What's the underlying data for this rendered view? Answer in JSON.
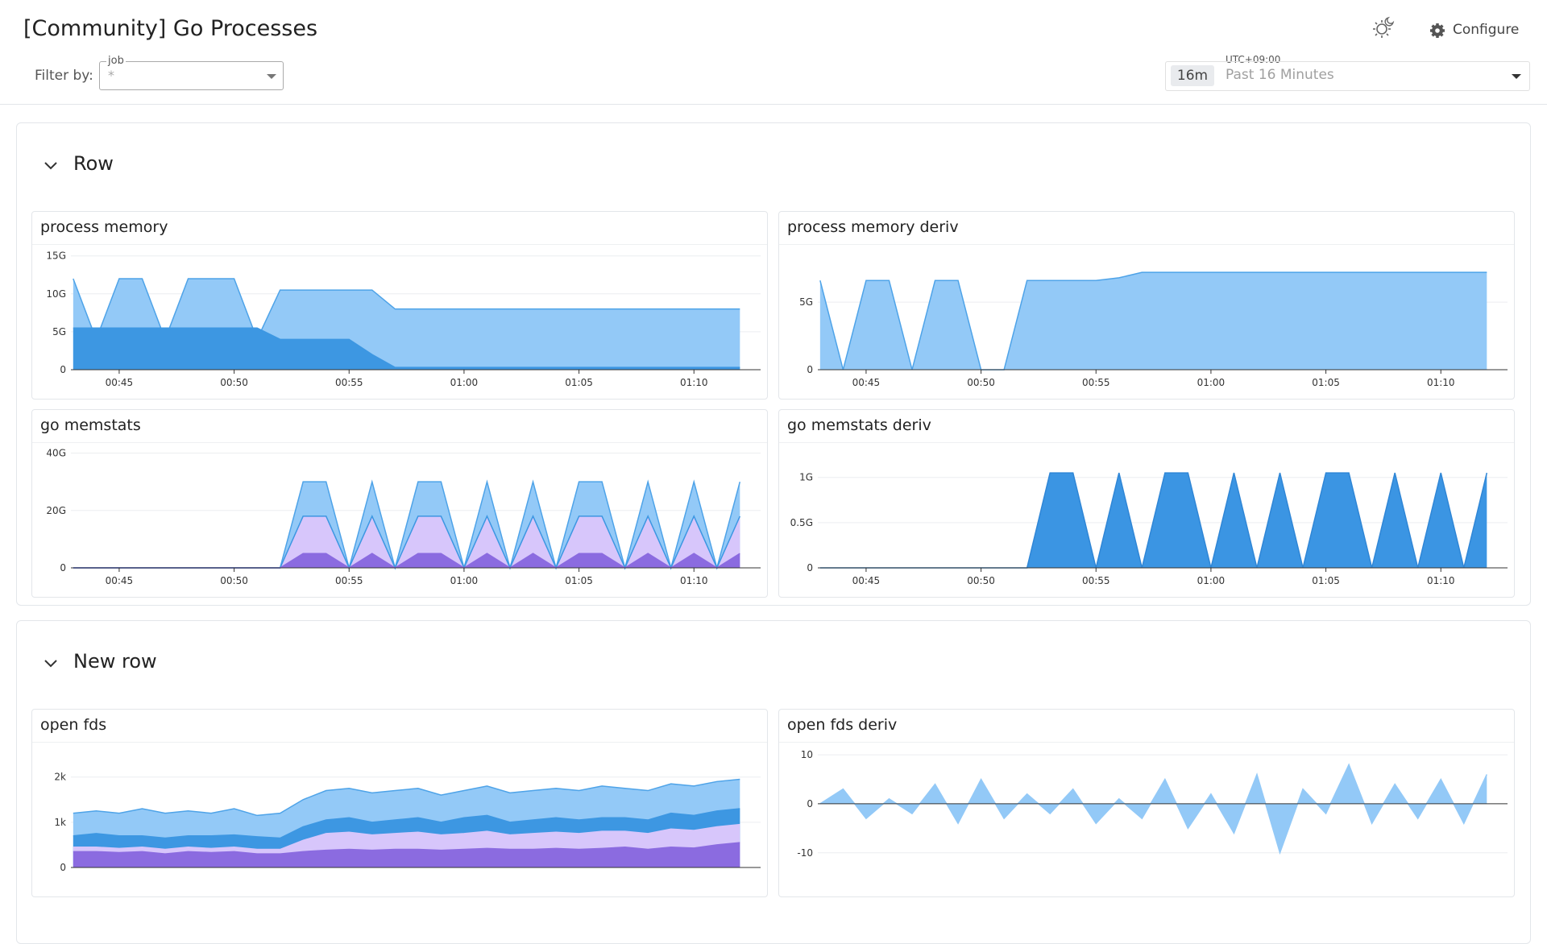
{
  "header": {
    "title": "[Community] Go Processes",
    "filter_label": "Filter by:",
    "filter": {
      "label": "job",
      "value": "*"
    },
    "timezone": "UTC+09:00",
    "range_short": "16m",
    "range": "Past 16 Minutes",
    "configure": "Configure"
  },
  "rows": [
    {
      "title": "Row",
      "panels": [
        {
          "type": "area",
          "title": "process memory",
          "x": [
            43,
            44,
            45,
            46,
            47,
            48,
            49,
            50,
            51,
            52,
            53,
            54,
            55,
            56,
            57,
            58,
            59,
            60,
            61,
            62,
            63,
            64,
            65,
            66,
            67,
            68,
            69,
            70,
            71,
            72
          ],
          "xlim": [
            42.9,
            72.9
          ],
          "xticks": [
            {
              "value": 45,
              "label": "00:45"
            },
            {
              "value": 50,
              "label": "00:50"
            },
            {
              "value": 55,
              "label": "00:55"
            },
            {
              "value": 60,
              "label": "01:00"
            },
            {
              "value": 65,
              "label": "01:05"
            },
            {
              "value": 70,
              "label": "01:10"
            }
          ],
          "ylim": [
            0,
            15.5
          ],
          "yticks": [
            0,
            {
              "value": 5,
              "label": "5G"
            },
            {
              "value": 10,
              "label": "10G"
            },
            {
              "value": 15,
              "label": "15G"
            }
          ],
          "series": [
            {
              "color": "#93c9f7",
              "line_color": "#4ea3e8",
              "values": [
                12,
                4,
                12,
                12,
                4,
                12,
                12,
                12,
                4,
                10.5,
                10.5,
                10.5,
                10.5,
                10.5,
                8,
                8,
                8,
                8,
                8,
                8,
                8,
                8,
                8,
                8,
                8,
                8,
                8,
                8,
                8,
                8
              ]
            },
            {
              "color": "#3d97e2",
              "line_color": "#3d97e2",
              "values": [
                5.5,
                5.5,
                5.5,
                5.5,
                5.5,
                5.5,
                5.5,
                5.5,
                5.5,
                4,
                4,
                4,
                4,
                2,
                0.3,
                0.3,
                0.3,
                0.3,
                0.3,
                0.3,
                0.3,
                0.3,
                0.3,
                0.3,
                0.3,
                0.3,
                0.3,
                0.3,
                0.3,
                0.3
              ]
            }
          ]
        },
        {
          "type": "area",
          "title": "process memory deriv",
          "x": [
            43,
            44,
            45,
            46,
            47,
            48,
            49,
            50,
            51,
            52,
            53,
            54,
            55,
            56,
            57,
            58,
            59,
            60,
            61,
            62,
            63,
            64,
            65,
            66,
            67,
            68,
            69,
            70,
            71,
            72
          ],
          "xlim": [
            42.9,
            72.9
          ],
          "xticks": [
            {
              "value": 45,
              "label": "00:45"
            },
            {
              "value": 50,
              "label": "00:50"
            },
            {
              "value": 55,
              "label": "00:55"
            },
            {
              "value": 60,
              "label": "01:00"
            },
            {
              "value": 65,
              "label": "01:05"
            },
            {
              "value": 70,
              "label": "01:10"
            }
          ],
          "ylim": [
            0,
            8.7
          ],
          "yticks": [
            0,
            {
              "value": 5,
              "label": "5G"
            }
          ],
          "series": [
            {
              "color": "#93c9f7",
              "line_color": "#4ea3e8",
              "values": [
                6.6,
                0,
                6.6,
                6.6,
                0,
                6.6,
                6.6,
                0,
                0,
                6.6,
                6.6,
                6.6,
                6.6,
                6.8,
                7.2,
                7.2,
                7.2,
                7.2,
                7.2,
                7.2,
                7.2,
                7.2,
                7.2,
                7.2,
                7.2,
                7.2,
                7.2,
                7.2,
                7.2,
                7.2
              ]
            }
          ]
        },
        {
          "type": "area",
          "title": "go memstats",
          "x": [
            43,
            44,
            45,
            46,
            47,
            48,
            49,
            50,
            51,
            52,
            53,
            54,
            55,
            56,
            57,
            58,
            59,
            60,
            61,
            62,
            63,
            64,
            65,
            66,
            67,
            68,
            69,
            70,
            71,
            72
          ],
          "xlim": [
            42.9,
            72.9
          ],
          "xticks": [
            {
              "value": 45,
              "label": "00:45"
            },
            {
              "value": 50,
              "label": "00:50"
            },
            {
              "value": 55,
              "label": "00:55"
            },
            {
              "value": 60,
              "label": "01:00"
            },
            {
              "value": 65,
              "label": "01:05"
            },
            {
              "value": 70,
              "label": "01:10"
            }
          ],
          "ylim": [
            0,
            41
          ],
          "yticks": [
            0,
            {
              "value": 20,
              "label": "20G"
            },
            {
              "value": 40,
              "label": "40G"
            }
          ],
          "series": [
            {
              "color": "#93c9f7",
              "line_color": "#4ea3e8",
              "values": [
                0,
                0,
                0,
                0,
                0,
                0,
                0,
                0,
                0,
                0,
                30,
                30,
                0,
                30,
                0,
                30,
                30,
                0,
                30,
                0,
                30,
                0,
                30,
                30,
                0,
                30,
                0,
                30,
                0,
                30
              ]
            },
            {
              "color": "#d7c6fb",
              "line_color": "#3d97e2",
              "values": [
                0,
                0,
                0,
                0,
                0,
                0,
                0,
                0,
                0,
                0,
                18,
                18,
                0,
                18,
                0,
                18,
                18,
                0,
                18,
                0,
                18,
                0,
                18,
                18,
                0,
                18,
                0,
                18,
                0,
                18
              ]
            },
            {
              "color": "#8b6be0",
              "line_color": "#8b6be0",
              "values": [
                0,
                0,
                0,
                0,
                0,
                0,
                0,
                0,
                0,
                0,
                5,
                5,
                0,
                5,
                0,
                5,
                5,
                0,
                5,
                0,
                5,
                0,
                5,
                5,
                0,
                5,
                0,
                5,
                0,
                5
              ]
            }
          ]
        },
        {
          "type": "area",
          "title": "go memstats deriv",
          "x": [
            43,
            44,
            45,
            46,
            47,
            48,
            49,
            50,
            51,
            52,
            53,
            54,
            55,
            56,
            57,
            58,
            59,
            60,
            61,
            62,
            63,
            64,
            65,
            66,
            67,
            68,
            69,
            70,
            71,
            72
          ],
          "xlim": [
            42.9,
            72.9
          ],
          "xticks": [
            {
              "value": 45,
              "label": "00:45"
            },
            {
              "value": 50,
              "label": "00:50"
            },
            {
              "value": 55,
              "label": "00:55"
            },
            {
              "value": 60,
              "label": "01:00"
            },
            {
              "value": 65,
              "label": "01:05"
            },
            {
              "value": 70,
              "label": "01:10"
            }
          ],
          "ylim": [
            0,
            1.3
          ],
          "yticks": [
            0,
            {
              "value": 0.5,
              "label": "0.5G"
            },
            {
              "value": 1,
              "label": "1G"
            }
          ],
          "series": [
            {
              "color": "#3b95e3",
              "line_color": "#2f86d6",
              "values": [
                0,
                0,
                0,
                0,
                0,
                0,
                0,
                0,
                0,
                0,
                1.05,
                1.05,
                0,
                1.05,
                0,
                1.05,
                1.05,
                0,
                1.05,
                0,
                1.05,
                0,
                1.05,
                1.05,
                0,
                1.05,
                0,
                1.05,
                0,
                1.05
              ]
            }
          ]
        }
      ]
    },
    {
      "title": "New row",
      "panels": [
        {
          "type": "area",
          "title": "open fds",
          "x": [
            43,
            44,
            45,
            46,
            47,
            48,
            49,
            50,
            51,
            52,
            53,
            54,
            55,
            56,
            57,
            58,
            59,
            60,
            61,
            62,
            63,
            64,
            65,
            66,
            67,
            68,
            69,
            70,
            71,
            72
          ],
          "xlim": [
            42.9,
            72.9
          ],
          "xticks": [],
          "ylim": [
            0,
            2.6
          ],
          "yticks": [
            0,
            {
              "value": 1,
              "label": "1k"
            },
            {
              "value": 2,
              "label": "2k"
            }
          ],
          "series": [
            {
              "color": "#93c9f7",
              "line_color": "#4ea3e8",
              "values": [
                1.2,
                1.25,
                1.2,
                1.3,
                1.2,
                1.25,
                1.2,
                1.3,
                1.15,
                1.2,
                1.5,
                1.7,
                1.75,
                1.65,
                1.7,
                1.75,
                1.6,
                1.7,
                1.8,
                1.65,
                1.7,
                1.75,
                1.7,
                1.8,
                1.75,
                1.7,
                1.85,
                1.8,
                1.9,
                1.95
              ]
            },
            {
              "color": "#3d97e2",
              "line_color": "#3d97e2",
              "values": [
                0.7,
                0.75,
                0.7,
                0.7,
                0.65,
                0.7,
                0.7,
                0.72,
                0.68,
                0.65,
                0.9,
                1.05,
                1.1,
                1,
                1.05,
                1.1,
                1,
                1.1,
                1.15,
                1,
                1.05,
                1.1,
                1.05,
                1.1,
                1.1,
                1.05,
                1.2,
                1.15,
                1.25,
                1.3
              ]
            },
            {
              "color": "#d7c6fb",
              "line_color": "#d7c6fb",
              "values": [
                0.45,
                0.45,
                0.42,
                0.45,
                0.4,
                0.45,
                0.42,
                0.45,
                0.4,
                0.4,
                0.6,
                0.75,
                0.78,
                0.72,
                0.75,
                0.78,
                0.72,
                0.75,
                0.8,
                0.72,
                0.75,
                0.78,
                0.75,
                0.8,
                0.8,
                0.75,
                0.85,
                0.82,
                0.9,
                0.95
              ]
            },
            {
              "color": "#8b6be0",
              "line_color": "#8b6be0",
              "values": [
                0.35,
                0.35,
                0.33,
                0.35,
                0.3,
                0.35,
                0.33,
                0.35,
                0.3,
                0.3,
                0.35,
                0.38,
                0.4,
                0.38,
                0.4,
                0.4,
                0.38,
                0.4,
                0.42,
                0.4,
                0.4,
                0.42,
                0.4,
                0.42,
                0.45,
                0.4,
                0.45,
                0.43,
                0.5,
                0.55
              ]
            }
          ]
        },
        {
          "type": "area",
          "title": "open fds deriv",
          "x": [
            43,
            44,
            45,
            46,
            47,
            48,
            49,
            50,
            51,
            52,
            53,
            54,
            55,
            56,
            57,
            58,
            59,
            60,
            61,
            62,
            63,
            64,
            65,
            66,
            67,
            68,
            69,
            70,
            71,
            72
          ],
          "xlim": [
            42.9,
            72.9
          ],
          "xticks": [],
          "ylim": [
            -13,
            11
          ],
          "yticks": [
            {
              "value": -10,
              "label": "-10"
            },
            0,
            10
          ],
          "series": [
            {
              "color": "#93c9f7",
              "line_color": "#93c9f7",
              "values": [
                0,
                3,
                -3,
                1,
                -2,
                4,
                -4,
                5,
                -3,
                2,
                -2,
                3,
                -4,
                1,
                -3,
                5,
                -5,
                2,
                -6,
                6,
                -10,
                3,
                -2,
                8,
                -4,
                4,
                -3,
                5,
                -4,
                6
              ]
            }
          ]
        }
      ]
    }
  ]
}
